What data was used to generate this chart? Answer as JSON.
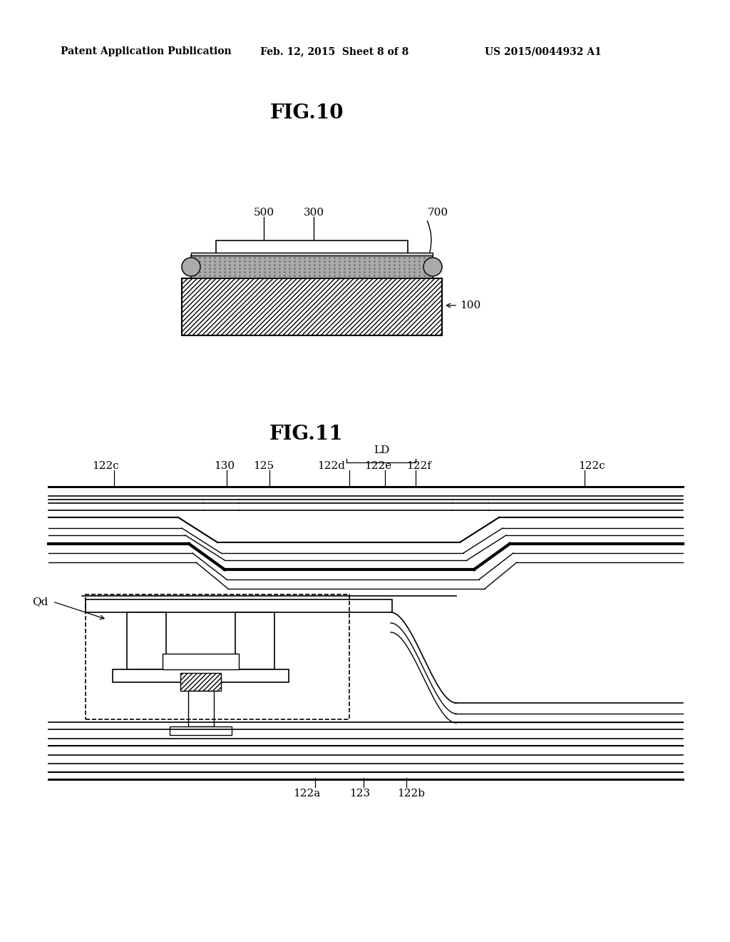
{
  "bg_color": "#ffffff",
  "header_left": "Patent Application Publication",
  "header_mid": "Feb. 12, 2015  Sheet 8 of 8",
  "header_right": "US 2015/0044932 A1",
  "fig10_title": "FIG.10",
  "fig11_title": "FIG.11",
  "label_100": "100",
  "label_300": "300",
  "label_500": "500",
  "label_700": "700",
  "label_122a": "122a",
  "label_122b": "122b",
  "label_122c_left": "122c",
  "label_122c_right": "122c",
  "label_122d": "122d",
  "label_122e": "122e",
  "label_122f": "122f",
  "label_123": "123",
  "label_125": "125",
  "label_130": "130",
  "label_LD": "LD",
  "label_Qd": "Qd",
  "line_color": "#000000",
  "gray_stipple": "#aaaaaa",
  "gray_dark": "#333333"
}
